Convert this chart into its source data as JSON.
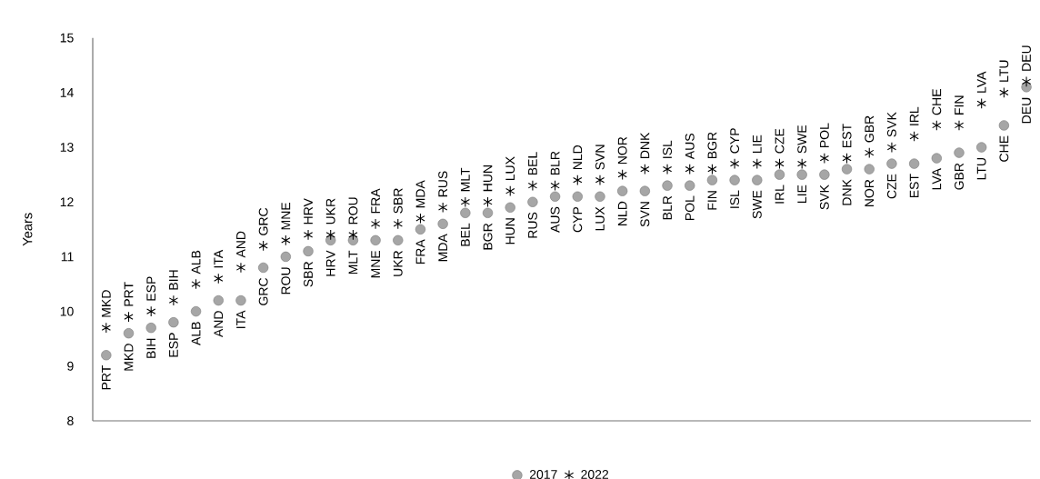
{
  "chart_data": {
    "type": "scatter",
    "ylabel": "Years",
    "ylim": [
      8,
      15
    ],
    "yticks": [
      8,
      9,
      10,
      11,
      12,
      13,
      14,
      15
    ],
    "tick_labels": "y",
    "legend": "bottom",
    "grid": false,
    "categories": [
      null,
      null,
      null,
      null,
      null,
      null,
      null,
      null,
      null,
      null,
      null,
      null,
      null,
      null,
      null,
      null,
      null,
      null,
      null,
      null,
      null,
      null,
      null,
      null,
      null,
      null,
      null,
      null,
      null,
      null,
      null,
      null,
      null,
      null,
      null,
      null,
      null,
      null,
      null,
      null,
      null,
      null
    ],
    "series": [
      {
        "name": "2017",
        "color": "#a6a6a6",
        "marker": "circle",
        "values": [
          9.2,
          9.6,
          9.7,
          9.8,
          10.0,
          10.2,
          10.2,
          10.8,
          11.0,
          11.1,
          11.3,
          11.3,
          11.3,
          11.3,
          11.5,
          11.6,
          11.8,
          11.8,
          11.9,
          12.0,
          12.1,
          12.1,
          12.1,
          12.2,
          12.2,
          12.3,
          12.3,
          12.4,
          12.4,
          12.4,
          12.5,
          12.5,
          12.5,
          12.6,
          12.6,
          12.7,
          12.7,
          12.8,
          12.9,
          13.0,
          13.4,
          14.1
        ],
        "value_labels": [
          "PRT",
          "MKD",
          "BIH",
          "ESP",
          "ALB",
          "AND",
          "ITA",
          "GRC",
          "ROU",
          "SBR",
          "HRV",
          "MLT",
          "MNE",
          "UKR",
          "FRA",
          "MDA",
          "BEL",
          "BGR",
          "HUN",
          "RUS",
          "AUS",
          "CYP",
          "LUX",
          "NLD",
          "SVN",
          "BLR",
          "POL",
          "FIN",
          "ISL",
          "SWE",
          "IRL",
          "LIE",
          "SVK",
          "DNK",
          "NOR",
          "CZE",
          "EST",
          "LVA",
          "GBR",
          "LTU",
          "CHE",
          "DEU"
        ]
      },
      {
        "name": "2022",
        "color": "#000000",
        "marker": "cross",
        "values": [
          9.7,
          9.9,
          10.0,
          10.2,
          10.5,
          10.6,
          10.8,
          11.2,
          11.3,
          11.4,
          11.4,
          11.4,
          11.6,
          11.6,
          11.7,
          11.9,
          12.0,
          12.0,
          12.2,
          12.3,
          12.3,
          12.4,
          12.4,
          12.5,
          12.6,
          12.6,
          12.6,
          12.6,
          12.7,
          12.7,
          12.7,
          12.7,
          12.8,
          12.8,
          12.9,
          13.0,
          13.2,
          13.4,
          13.4,
          13.8,
          14.0,
          14.2
        ],
        "value_labels": [
          "MKD",
          "PRT",
          "ESP",
          "BIH",
          "ALB",
          "ITA",
          "AND",
          "GRC",
          "MNE",
          "HRV",
          "UKR",
          "ROU",
          "FRA",
          "SBR",
          "MDA",
          "RUS",
          "MLT",
          "HUN",
          "LUX",
          "BEL",
          "BLR",
          "NLD",
          "SVN",
          "NOR",
          "DNK",
          "ISL",
          "AUS",
          "BGR",
          "CYP",
          "LIE",
          "CZE",
          "SWE",
          "POL",
          "EST",
          "GBR",
          "SVK",
          "IRL",
          "CHE",
          "FIN",
          "LVA",
          "LTU",
          "DEU"
        ]
      }
    ]
  }
}
